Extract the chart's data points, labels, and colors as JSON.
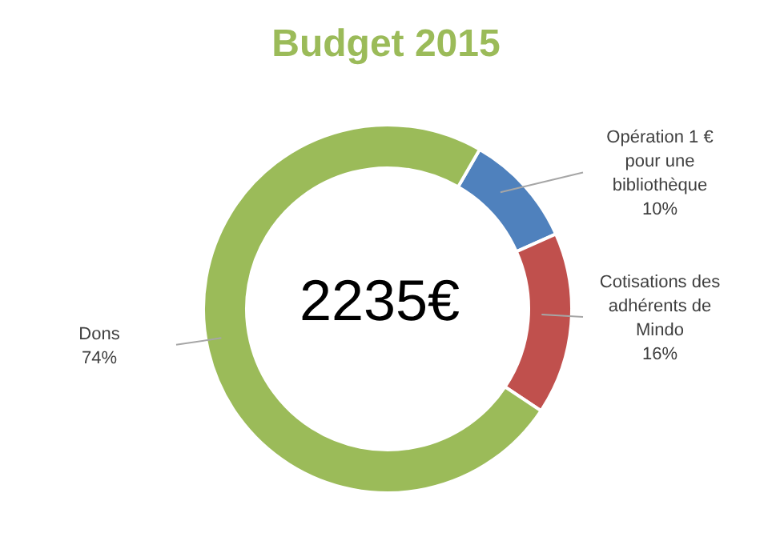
{
  "chart_data": {
    "type": "donut",
    "title": "Budget 2015",
    "categories": [
      "Opération 1 € pour une bibliothèque",
      "Cotisations des adhérents de Mindo",
      "Dons"
    ],
    "values": [
      10,
      16,
      74
    ],
    "colors": [
      "#4f81bd",
      "#c0504d",
      "#9bbb59"
    ],
    "value_labels": [
      "10%",
      "16%",
      "74%"
    ],
    "annotations": [
      "2235€"
    ]
  }
}
